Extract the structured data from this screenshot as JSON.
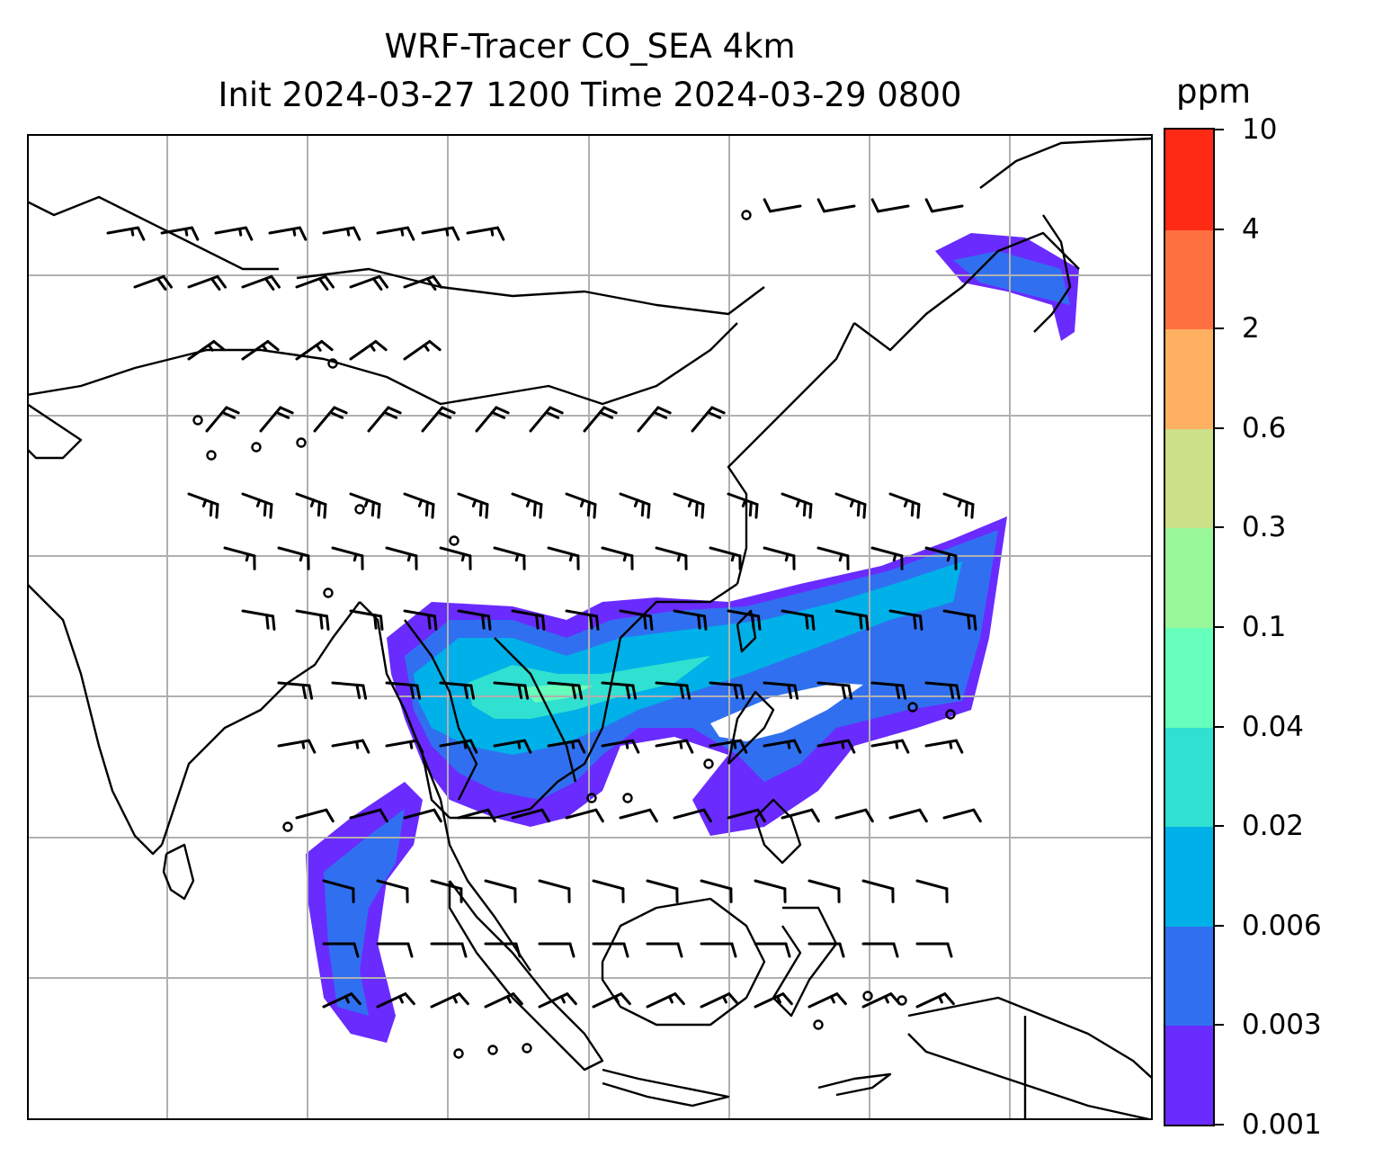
{
  "title": {
    "line1": "WRF-Tracer CO_SEA 4km",
    "line2": "Init 2024-03-27 1200 Time 2024-03-29 0800"
  },
  "colorbar": {
    "unit": "ppm",
    "ticks": [
      "0.001",
      "0.003",
      "0.006",
      "0.02",
      "0.04",
      "0.1",
      "0.3",
      "0.6",
      "2",
      "4",
      "10"
    ],
    "colors": [
      "#6a2bff",
      "#3070f0",
      "#00b0e8",
      "#30e0d0",
      "#66ffbb",
      "#99f89a",
      "#cce088",
      "#ffb060",
      "#ff7040",
      "#ff2a14"
    ]
  },
  "map": {
    "grid_lines": true,
    "gridline_color": "#b0b0b0",
    "coastline_color": "#000000",
    "barb_color": "#000000"
  }
}
